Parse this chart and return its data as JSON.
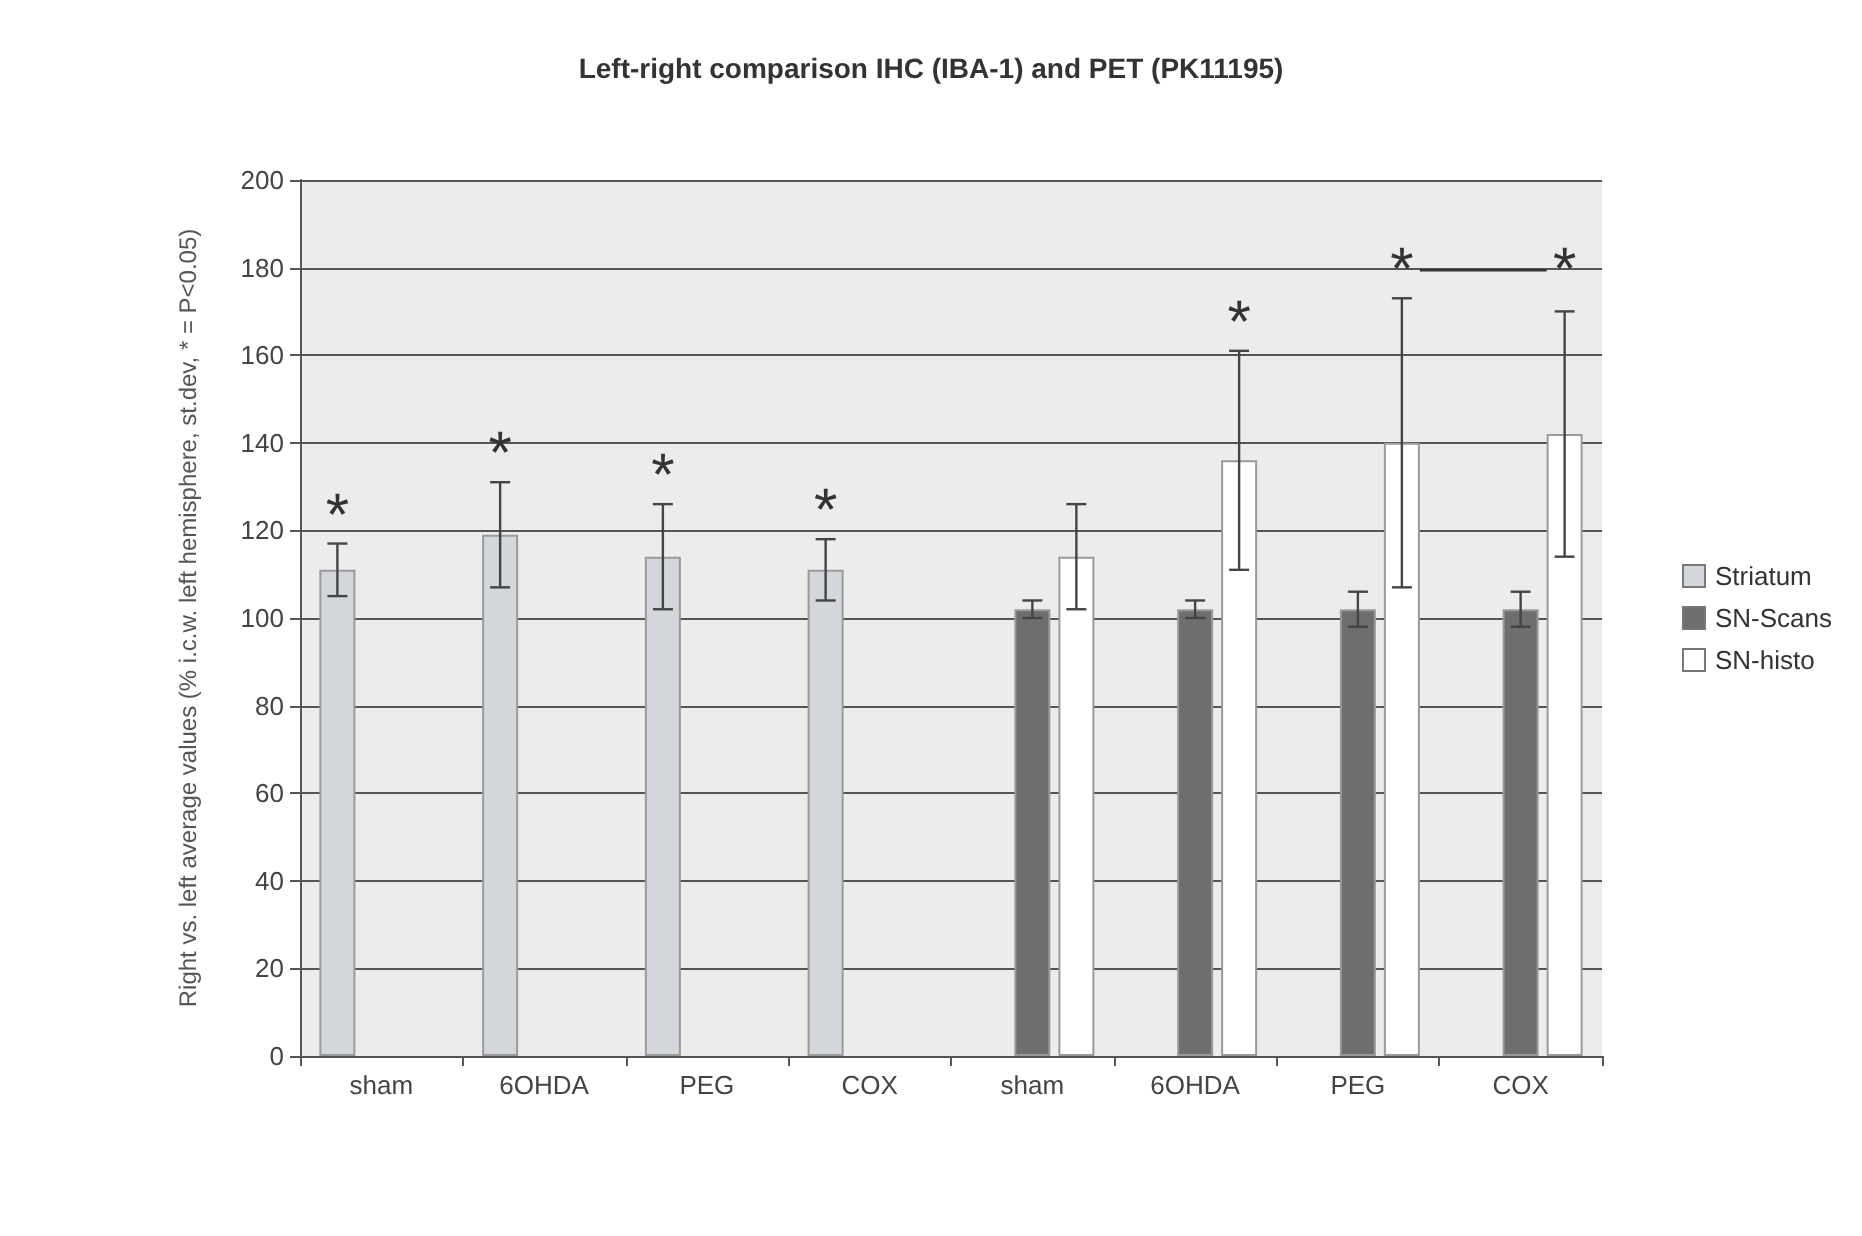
{
  "chart_data": {
    "type": "bar",
    "title": "Left-right comparison IHC (IBA-1) and PET (PK11195)",
    "ylabel": "Right vs. left average values (% i.c.w. left hemisphere, st.dev, * = P<0.05)",
    "categories": [
      "sham",
      "6OHDA",
      "PEG",
      "COX",
      "sham",
      "6OHDA",
      "PEG",
      "COX"
    ],
    "series": [
      {
        "name": "Striatum",
        "color": "#d3d6da",
        "values": [
          111,
          119,
          114,
          111,
          null,
          null,
          null,
          null
        ],
        "errors": [
          6,
          12,
          12,
          7,
          null,
          null,
          null,
          null
        ]
      },
      {
        "name": "SN-Scans",
        "color": "#6e6e6e",
        "values": [
          null,
          null,
          null,
          null,
          102,
          102,
          102,
          102
        ],
        "errors": [
          null,
          null,
          null,
          null,
          2,
          2,
          4,
          4
        ]
      },
      {
        "name": "SN-histo",
        "color": "#ffffff",
        "values": [
          null,
          null,
          null,
          null,
          114,
          136,
          140,
          142
        ],
        "errors": [
          null,
          null,
          null,
          null,
          12,
          25,
          33,
          28
        ]
      }
    ],
    "annotations": [
      "*",
      "*",
      "*",
      "*",
      "*",
      "*",
      "*"
    ],
    "ylim": [
      0,
      200
    ],
    "yticks": [
      0,
      20,
      40,
      60,
      80,
      100,
      120,
      140,
      160,
      180,
      200
    ],
    "grid": "y",
    "legend": "right"
  }
}
